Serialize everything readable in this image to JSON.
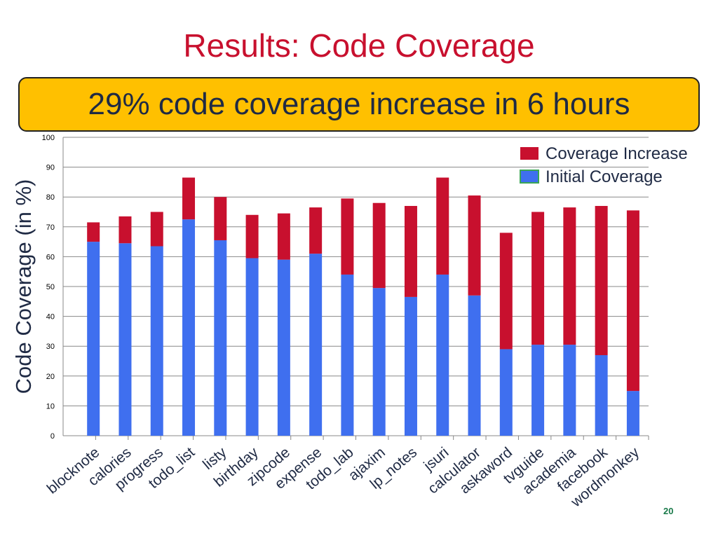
{
  "slide": {
    "title": "Results: Code Coverage",
    "banner": "29% code coverage increase in 6 hours",
    "page_number": "20"
  },
  "colors": {
    "title": "#c8102e",
    "banner_bg": "#ffc000",
    "increase": "#c8102e",
    "initial": "#3f6fef",
    "grid": "#888888",
    "axis_text": "#1f2a44"
  },
  "chart_data": {
    "type": "bar",
    "stacked": true,
    "ylabel": "Code Coverage (in %)",
    "xlabel": "",
    "ylim": [
      0,
      100
    ],
    "yticks": [
      0,
      10,
      20,
      30,
      40,
      50,
      60,
      70,
      80,
      90,
      100
    ],
    "grid": true,
    "legend_position": "top-right",
    "categories": [
      "blocknote",
      "calories",
      "progress",
      "todo_list",
      "listy",
      "birthday",
      "zipcode",
      "expense",
      "todo_lab",
      "ajaxim",
      "lp_notes",
      "jsuri",
      "calculator",
      "askaword",
      "tvguide",
      "academia",
      "facebook",
      "wordmonkey"
    ],
    "series": [
      {
        "name": "Initial Coverage",
        "color": "#3f6fef",
        "values": [
          65,
          64.5,
          63.5,
          72.5,
          65.5,
          59.5,
          59,
          61,
          54,
          49.5,
          46.5,
          54,
          47,
          29,
          30.5,
          30.5,
          27,
          15
        ]
      },
      {
        "name": "Coverage Increase",
        "color": "#c8102e",
        "values": [
          6.5,
          9,
          11.5,
          14,
          14.5,
          14.5,
          15.5,
          15.5,
          25.5,
          28.5,
          30.5,
          32.5,
          33.5,
          39,
          44.5,
          46,
          50,
          60.5
        ]
      }
    ],
    "legend_order": [
      "Coverage Increase",
      "Initial Coverage"
    ]
  }
}
